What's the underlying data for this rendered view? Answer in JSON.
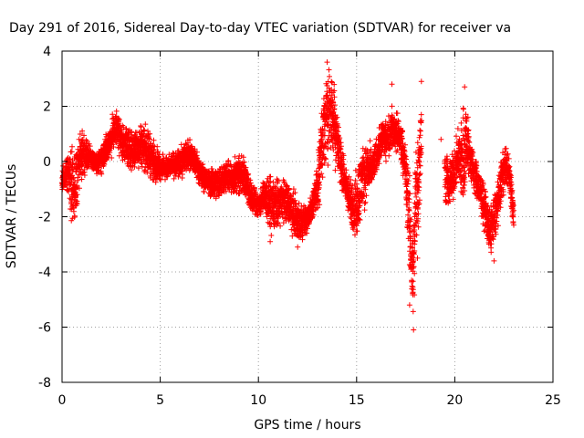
{
  "chart_data": {
    "type": "scatter",
    "title": "Day 291 of 2016, Sidereal Day-to-day VTEC variation (SDTVAR) for receiver va",
    "xlabel": "GPS time / hours",
    "ylabel": "SDTVAR / TECUs",
    "xlim": [
      0,
      25
    ],
    "ylim": [
      -8,
      4
    ],
    "xticks": [
      0,
      5,
      10,
      15,
      20,
      25
    ],
    "yticks": [
      -8,
      -6,
      -4,
      -2,
      0,
      2,
      4
    ],
    "grid": true,
    "marker": "+",
    "color": "#ff0000",
    "series": [
      {
        "name": "SDTVAR",
        "envelope": [
          [
            0.0,
            -1.2,
            -0.3
          ],
          [
            0.2,
            -1.0,
            0.3
          ],
          [
            0.4,
            -1.5,
            0.5
          ],
          [
            0.5,
            -2.9,
            0.8
          ],
          [
            0.7,
            -2.8,
            0.6
          ],
          [
            0.8,
            -1.0,
            0.9
          ],
          [
            1.0,
            -0.8,
            1.2
          ],
          [
            1.2,
            -0.5,
            1.0
          ],
          [
            1.5,
            -0.3,
            0.6
          ],
          [
            1.8,
            -0.6,
            0.3
          ],
          [
            2.0,
            -0.5,
            0.8
          ],
          [
            2.3,
            -0.2,
            1.2
          ],
          [
            2.6,
            0.2,
            1.8
          ],
          [
            2.8,
            0.4,
            2.1
          ],
          [
            3.0,
            0.0,
            1.6
          ],
          [
            3.3,
            -0.3,
            1.4
          ],
          [
            3.6,
            -0.5,
            1.2
          ],
          [
            4.0,
            -0.3,
            1.6
          ],
          [
            4.3,
            -0.6,
            1.5
          ],
          [
            4.6,
            -0.8,
            1.0
          ],
          [
            5.0,
            -0.8,
            0.4
          ],
          [
            5.3,
            -0.7,
            0.2
          ],
          [
            5.6,
            -0.6,
            0.4
          ],
          [
            6.0,
            -0.7,
            0.5
          ],
          [
            6.3,
            -0.6,
            1.0
          ],
          [
            6.6,
            -0.3,
            0.8
          ],
          [
            7.0,
            -1.0,
            0.2
          ],
          [
            7.3,
            -1.2,
            -0.1
          ],
          [
            7.6,
            -1.4,
            -0.2
          ],
          [
            8.0,
            -1.5,
            0.0
          ],
          [
            8.3,
            -1.2,
            0.2
          ],
          [
            8.6,
            -1.2,
            0.0
          ],
          [
            9.0,
            -1.5,
            0.5
          ],
          [
            9.3,
            -1.3,
            0.3
          ],
          [
            9.6,
            -2.0,
            -0.5
          ],
          [
            10.0,
            -2.2,
            -1.0
          ],
          [
            10.3,
            -1.7,
            -0.7
          ],
          [
            10.6,
            -2.9,
            -0.3
          ],
          [
            11.0,
            -2.7,
            -0.5
          ],
          [
            11.3,
            -2.2,
            -0.5
          ],
          [
            11.6,
            -2.6,
            -0.6
          ],
          [
            12.0,
            -3.1,
            -1.3
          ],
          [
            12.3,
            -2.8,
            -1.5
          ],
          [
            12.6,
            -2.6,
            -1.3
          ],
          [
            12.9,
            -2.0,
            -0.5
          ],
          [
            13.1,
            -1.8,
            1.0
          ],
          [
            13.3,
            -0.6,
            2.8
          ],
          [
            13.5,
            -0.3,
            3.7
          ],
          [
            13.7,
            -0.1,
            3.8
          ],
          [
            13.9,
            -0.4,
            3.1
          ],
          [
            14.1,
            -0.8,
            1.5
          ],
          [
            14.4,
            -1.5,
            0.0
          ],
          [
            14.7,
            -2.5,
            -0.5
          ],
          [
            15.0,
            -3.2,
            -0.2
          ],
          [
            15.2,
            -2.3,
            0.6
          ],
          [
            15.5,
            -1.5,
            0.9
          ],
          [
            15.8,
            -1.2,
            0.6
          ],
          [
            16.0,
            -0.5,
            0.9
          ],
          [
            16.3,
            0.0,
            1.8
          ],
          [
            16.5,
            0.0,
            1.5
          ],
          [
            16.8,
            0.3,
            2.1
          ],
          [
            17.0,
            0.2,
            1.9
          ],
          [
            17.2,
            0.0,
            1.8
          ],
          [
            17.4,
            -0.7,
            1.2
          ],
          [
            17.6,
            -2.8,
            0.3
          ],
          [
            17.8,
            -5.9,
            -1.2
          ],
          [
            17.9,
            -6.1,
            -2.1
          ],
          [
            18.0,
            -4.0,
            1.5
          ],
          [
            18.2,
            -2.3,
            1.9
          ],
          [
            18.3,
            -0.6,
            2.9
          ],
          [
            19.5,
            -1.8,
            1.0
          ],
          [
            19.7,
            -2.0,
            0.2
          ],
          [
            20.0,
            -1.3,
            0.6
          ],
          [
            20.2,
            -0.8,
            1.3
          ],
          [
            20.4,
            -2.8,
            2.7
          ],
          [
            20.6,
            -0.6,
            2.4
          ],
          [
            20.8,
            -0.9,
            0.9
          ],
          [
            21.4,
            -2.2,
            -0.5
          ],
          [
            21.6,
            -2.8,
            -1.0
          ],
          [
            21.8,
            -3.7,
            -1.5
          ],
          [
            22.0,
            -3.2,
            -1.0
          ],
          [
            22.2,
            -2.3,
            -0.6
          ],
          [
            22.4,
            -1.5,
            0.4
          ],
          [
            22.6,
            -1.0,
            0.7
          ],
          [
            22.8,
            -1.3,
            0.2
          ],
          [
            23.0,
            -2.5,
            -1.5
          ]
        ]
      }
    ],
    "isolated_points": [
      [
        16.8,
        2.8
      ],
      [
        18.3,
        2.9
      ],
      [
        17.9,
        -6.1
      ],
      [
        20.5,
        2.7
      ],
      [
        19.3,
        0.8
      ],
      [
        23.0,
        -2.3
      ],
      [
        13.5,
        3.6
      ],
      [
        17.7,
        -5.2
      ],
      [
        18.1,
        -3.5
      ],
      [
        10.6,
        -2.9
      ],
      [
        12.0,
        -3.1
      ],
      [
        22.0,
        -3.6
      ]
    ]
  }
}
